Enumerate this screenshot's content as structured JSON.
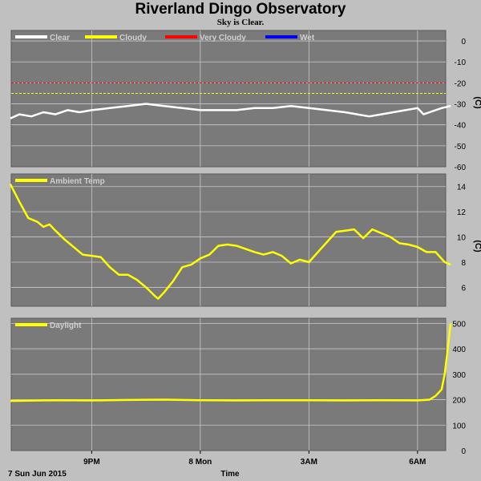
{
  "title": "Riverland Dingo Observatory",
  "subtitle": "Sky is Clear.",
  "colors": {
    "background": "#c0c0c0",
    "panel": "#7a7a7a",
    "grid": "#c8c8c8",
    "clear": "#ffffff",
    "cloudy": "#ffff00",
    "very_cloudy": "#ff0000",
    "wet": "#0000ff"
  },
  "x_axis": {
    "label": "Time",
    "date_label": "7 Sun Jun 2015",
    "range": [
      "2015-06-07 18:40",
      "2015-06-08 07:00"
    ],
    "ticks": [
      {
        "time": "2015-06-07 21:00",
        "label": "9PM"
      },
      {
        "time": "2015-06-08 00:00",
        "label": "8 Mon"
      },
      {
        "time": "2015-06-08 03:00",
        "label": "3AM"
      },
      {
        "time": "2015-06-08 06:00",
        "label": "6AM"
      }
    ]
  },
  "chart_data": [
    {
      "type": "line",
      "legend": [
        {
          "name": "Clear",
          "color": "#ffffff"
        },
        {
          "name": "Cloudy",
          "color": "#ffff00"
        },
        {
          "name": "Very Cloudy",
          "color": "#ff0000"
        },
        {
          "name": "Wet",
          "color": "#0000ff"
        }
      ],
      "unit": "(C)",
      "ylim": [
        -60,
        5
      ],
      "yticks": [
        0,
        -10,
        -20,
        -30,
        -40,
        -50,
        -60
      ],
      "thresholds": [
        {
          "value": -20,
          "color": "#ff0000"
        },
        {
          "value": -25,
          "color": "#ffff00"
        }
      ],
      "series": [
        {
          "color": "#ffffff",
          "x": [
            "2015-06-07 18:45",
            "2015-06-07 19:00",
            "2015-06-07 19:20",
            "2015-06-07 19:40",
            "2015-06-07 20:00",
            "2015-06-07 20:20",
            "2015-06-07 20:40",
            "2015-06-07 21:00",
            "2015-06-07 21:30",
            "2015-06-07 22:00",
            "2015-06-07 22:30",
            "2015-06-07 23:00",
            "2015-06-07 23:30",
            "2015-06-08 00:00",
            "2015-06-08 00:30",
            "2015-06-08 01:00",
            "2015-06-08 01:30",
            "2015-06-08 02:00",
            "2015-06-08 02:30",
            "2015-06-08 03:00",
            "2015-06-08 03:30",
            "2015-06-08 04:00",
            "2015-06-08 04:20",
            "2015-06-08 04:40",
            "2015-06-08 05:00",
            "2015-06-08 05:20",
            "2015-06-08 05:40",
            "2015-06-08 06:00",
            "2015-06-08 06:10",
            "2015-06-08 06:20",
            "2015-06-08 06:40",
            "2015-06-08 06:55"
          ],
          "y": [
            -37,
            -35,
            -36,
            -34,
            -35,
            -33,
            -34,
            -33,
            -32,
            -31,
            -30,
            -31,
            -32,
            -33,
            -33,
            -33,
            -32,
            -32,
            -31,
            -32,
            -33,
            -34,
            -35,
            -36,
            -35,
            -34,
            -33,
            -32,
            -35,
            -34,
            -32,
            -31
          ]
        }
      ]
    },
    {
      "type": "line",
      "legend": [
        {
          "name": "Ambient Temp",
          "color": "#ffff00"
        }
      ],
      "unit": "(C)",
      "ylim": [
        4.5,
        15
      ],
      "yticks": [
        14,
        12,
        10,
        8,
        6
      ],
      "series": [
        {
          "color": "#ffff00",
          "x": [
            "2015-06-07 18:45",
            "2015-06-07 19:00",
            "2015-06-07 19:15",
            "2015-06-07 19:30",
            "2015-06-07 19:40",
            "2015-06-07 19:50",
            "2015-06-07 20:00",
            "2015-06-07 20:15",
            "2015-06-07 20:30",
            "2015-06-07 20:45",
            "2015-06-07 21:00",
            "2015-06-07 21:15",
            "2015-06-07 21:30",
            "2015-06-07 21:45",
            "2015-06-07 22:00",
            "2015-06-07 22:15",
            "2015-06-07 22:30",
            "2015-06-07 22:45",
            "2015-06-07 22:50",
            "2015-06-07 23:00",
            "2015-06-07 23:15",
            "2015-06-07 23:30",
            "2015-06-07 23:45",
            "2015-06-08 00:00",
            "2015-06-08 00:15",
            "2015-06-08 00:30",
            "2015-06-08 00:45",
            "2015-06-08 01:00",
            "2015-06-08 01:30",
            "2015-06-08 01:45",
            "2015-06-08 02:00",
            "2015-06-08 02:15",
            "2015-06-08 02:30",
            "2015-06-08 02:45",
            "2015-06-08 03:00",
            "2015-06-08 03:15",
            "2015-06-08 03:30",
            "2015-06-08 03:45",
            "2015-06-08 04:00",
            "2015-06-08 04:15",
            "2015-06-08 04:30",
            "2015-06-08 04:45",
            "2015-06-08 05:00",
            "2015-06-08 05:15",
            "2015-06-08 05:30",
            "2015-06-08 05:45",
            "2015-06-08 06:00",
            "2015-06-08 06:15",
            "2015-06-08 06:30",
            "2015-06-08 06:45",
            "2015-06-08 06:55"
          ],
          "y": [
            14.2,
            12.8,
            11.5,
            11.2,
            10.8,
            11.0,
            10.5,
            9.8,
            9.2,
            8.6,
            8.5,
            8.4,
            7.6,
            7.0,
            7.0,
            6.6,
            6.0,
            5.3,
            5.1,
            5.6,
            6.5,
            7.6,
            7.8,
            8.3,
            8.6,
            9.3,
            9.4,
            9.3,
            8.8,
            8.6,
            8.8,
            8.5,
            7.9,
            8.2,
            8.0,
            8.8,
            9.6,
            10.4,
            10.5,
            10.6,
            9.9,
            10.6,
            10.3,
            10.0,
            9.5,
            9.4,
            9.2,
            8.8,
            8.8,
            8.0,
            7.8
          ]
        }
      ]
    },
    {
      "type": "line",
      "legend": [
        {
          "name": "Daylight",
          "color": "#ffff00"
        }
      ],
      "ylim": [
        0,
        520
      ],
      "yticks": [
        500,
        400,
        300,
        200,
        100,
        0
      ],
      "series": [
        {
          "color": "#ffff00",
          "x": [
            "2015-06-07 18:45",
            "2015-06-07 20:00",
            "2015-06-07 21:00",
            "2015-06-07 22:00",
            "2015-06-07 23:00",
            "2015-06-08 00:00",
            "2015-06-08 01:00",
            "2015-06-08 02:00",
            "2015-06-08 03:00",
            "2015-06-08 04:00",
            "2015-06-08 05:00",
            "2015-06-08 06:00",
            "2015-06-08 06:20",
            "2015-06-08 06:30",
            "2015-06-08 06:40",
            "2015-06-08 06:45",
            "2015-06-08 06:50",
            "2015-06-08 06:55"
          ],
          "y": [
            195,
            198,
            197,
            199,
            200,
            198,
            197,
            198,
            198,
            197,
            198,
            197,
            200,
            215,
            240,
            300,
            400,
            500
          ]
        }
      ]
    }
  ]
}
